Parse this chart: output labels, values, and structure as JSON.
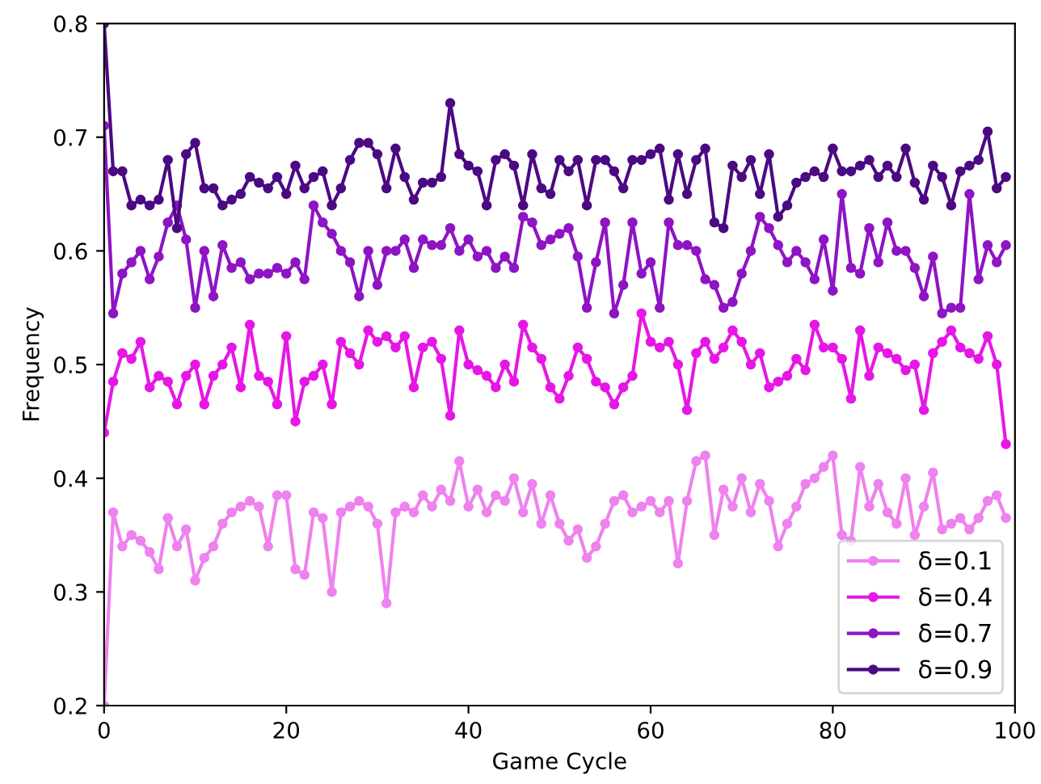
{
  "chart_data": {
    "type": "line",
    "xlabel": "Game Cycle",
    "ylabel": "Frequency",
    "x": [
      0,
      1,
      2,
      3,
      4,
      5,
      6,
      7,
      8,
      9,
      10,
      11,
      12,
      13,
      14,
      15,
      16,
      17,
      18,
      19,
      20,
      21,
      22,
      23,
      24,
      25,
      26,
      27,
      28,
      29,
      30,
      31,
      32,
      33,
      34,
      35,
      36,
      37,
      38,
      39,
      40,
      41,
      42,
      43,
      44,
      45,
      46,
      47,
      48,
      49,
      50,
      51,
      52,
      53,
      54,
      55,
      56,
      57,
      58,
      59,
      60,
      61,
      62,
      63,
      64,
      65,
      66,
      67,
      68,
      69,
      70,
      71,
      72,
      73,
      74,
      75,
      76,
      77,
      78,
      79,
      80,
      81,
      82,
      83,
      84,
      85,
      86,
      87,
      88,
      89,
      90,
      91,
      92,
      93,
      94,
      95,
      96,
      97,
      98,
      99
    ],
    "series": [
      {
        "name": "δ=0.1",
        "color": "#ee82ee",
        "values": [
          0.2,
          0.37,
          0.34,
          0.35,
          0.345,
          0.335,
          0.32,
          0.365,
          0.34,
          0.355,
          0.31,
          0.33,
          0.34,
          0.36,
          0.37,
          0.375,
          0.38,
          0.375,
          0.34,
          0.385,
          0.385,
          0.32,
          0.315,
          0.37,
          0.365,
          0.3,
          0.37,
          0.375,
          0.38,
          0.375,
          0.36,
          0.29,
          0.37,
          0.375,
          0.37,
          0.385,
          0.375,
          0.39,
          0.38,
          0.415,
          0.375,
          0.39,
          0.37,
          0.385,
          0.38,
          0.4,
          0.37,
          0.395,
          0.36,
          0.385,
          0.36,
          0.345,
          0.355,
          0.33,
          0.34,
          0.36,
          0.38,
          0.385,
          0.37,
          0.375,
          0.38,
          0.37,
          0.38,
          0.325,
          0.38,
          0.415,
          0.42,
          0.35,
          0.39,
          0.375,
          0.4,
          0.37,
          0.395,
          0.38,
          0.34,
          0.36,
          0.375,
          0.395,
          0.4,
          0.41,
          0.42,
          0.35,
          0.345,
          0.41,
          0.375,
          0.395,
          0.37,
          0.36,
          0.4,
          0.35,
          0.375,
          0.405,
          0.355,
          0.36,
          0.365,
          0.355,
          0.365,
          0.38,
          0.385,
          0.365
        ]
      },
      {
        "name": "δ=0.4",
        "color": "#e617e6",
        "values": [
          0.44,
          0.485,
          0.51,
          0.505,
          0.52,
          0.48,
          0.49,
          0.485,
          0.465,
          0.49,
          0.5,
          0.465,
          0.49,
          0.5,
          0.515,
          0.48,
          0.535,
          0.49,
          0.485,
          0.465,
          0.525,
          0.45,
          0.485,
          0.49,
          0.5,
          0.465,
          0.52,
          0.51,
          0.5,
          0.53,
          0.52,
          0.525,
          0.515,
          0.525,
          0.48,
          0.515,
          0.52,
          0.505,
          0.455,
          0.53,
          0.5,
          0.495,
          0.49,
          0.48,
          0.5,
          0.485,
          0.535,
          0.515,
          0.505,
          0.48,
          0.47,
          0.49,
          0.515,
          0.505,
          0.485,
          0.48,
          0.465,
          0.48,
          0.49,
          0.545,
          0.52,
          0.515,
          0.52,
          0.5,
          0.46,
          0.51,
          0.52,
          0.505,
          0.515,
          0.53,
          0.52,
          0.5,
          0.51,
          0.48,
          0.485,
          0.49,
          0.505,
          0.495,
          0.535,
          0.515,
          0.515,
          0.505,
          0.47,
          0.53,
          0.49,
          0.515,
          0.51,
          0.505,
          0.495,
          0.5,
          0.46,
          0.51,
          0.52,
          0.53,
          0.515,
          0.51,
          0.505,
          0.525,
          0.5,
          0.43
        ]
      },
      {
        "name": "δ=0.7",
        "color": "#8e14c4",
        "values": [
          0.71,
          0.545,
          0.58,
          0.59,
          0.6,
          0.575,
          0.595,
          0.625,
          0.64,
          0.61,
          0.55,
          0.6,
          0.56,
          0.605,
          0.585,
          0.59,
          0.575,
          0.58,
          0.58,
          0.585,
          0.58,
          0.59,
          0.575,
          0.64,
          0.625,
          0.615,
          0.6,
          0.59,
          0.56,
          0.6,
          0.57,
          0.6,
          0.6,
          0.61,
          0.585,
          0.61,
          0.605,
          0.605,
          0.62,
          0.6,
          0.61,
          0.595,
          0.6,
          0.585,
          0.595,
          0.585,
          0.63,
          0.625,
          0.605,
          0.61,
          0.615,
          0.62,
          0.595,
          0.55,
          0.59,
          0.625,
          0.545,
          0.57,
          0.625,
          0.58,
          0.59,
          0.55,
          0.625,
          0.605,
          0.605,
          0.6,
          0.575,
          0.57,
          0.55,
          0.555,
          0.58,
          0.6,
          0.63,
          0.62,
          0.605,
          0.59,
          0.6,
          0.59,
          0.575,
          0.61,
          0.565,
          0.65,
          0.585,
          0.58,
          0.62,
          0.59,
          0.625,
          0.6,
          0.6,
          0.585,
          0.56,
          0.595,
          0.545,
          0.55,
          0.55,
          0.65,
          0.575,
          0.605,
          0.59,
          0.605
        ]
      },
      {
        "name": "δ=0.9",
        "color": "#4b0a82",
        "values": [
          0.8,
          0.67,
          0.67,
          0.64,
          0.645,
          0.64,
          0.645,
          0.68,
          0.62,
          0.685,
          0.695,
          0.655,
          0.655,
          0.64,
          0.645,
          0.65,
          0.665,
          0.66,
          0.655,
          0.665,
          0.65,
          0.675,
          0.655,
          0.665,
          0.67,
          0.64,
          0.655,
          0.68,
          0.695,
          0.695,
          0.685,
          0.655,
          0.69,
          0.665,
          0.645,
          0.66,
          0.66,
          0.665,
          0.73,
          0.685,
          0.675,
          0.67,
          0.64,
          0.68,
          0.685,
          0.675,
          0.64,
          0.685,
          0.655,
          0.65,
          0.68,
          0.67,
          0.68,
          0.64,
          0.68,
          0.68,
          0.67,
          0.655,
          0.68,
          0.68,
          0.685,
          0.69,
          0.645,
          0.685,
          0.65,
          0.68,
          0.69,
          0.625,
          0.62,
          0.675,
          0.665,
          0.68,
          0.65,
          0.685,
          0.63,
          0.64,
          0.66,
          0.665,
          0.67,
          0.665,
          0.69,
          0.67,
          0.67,
          0.675,
          0.68,
          0.665,
          0.675,
          0.665,
          0.69,
          0.66,
          0.645,
          0.675,
          0.665,
          0.64,
          0.67,
          0.675,
          0.68,
          0.705,
          0.655,
          0.665
        ]
      }
    ],
    "xlim": [
      0,
      100
    ],
    "xticks": [
      0,
      20,
      40,
      60,
      80,
      100
    ],
    "ylim": [
      0.2,
      0.8
    ],
    "yticks": [
      0.2,
      0.3,
      0.4,
      0.5,
      0.6,
      0.7,
      0.8
    ],
    "grid": false,
    "legend": "bottom right",
    "marker": "circle",
    "line_style": "solid"
  }
}
